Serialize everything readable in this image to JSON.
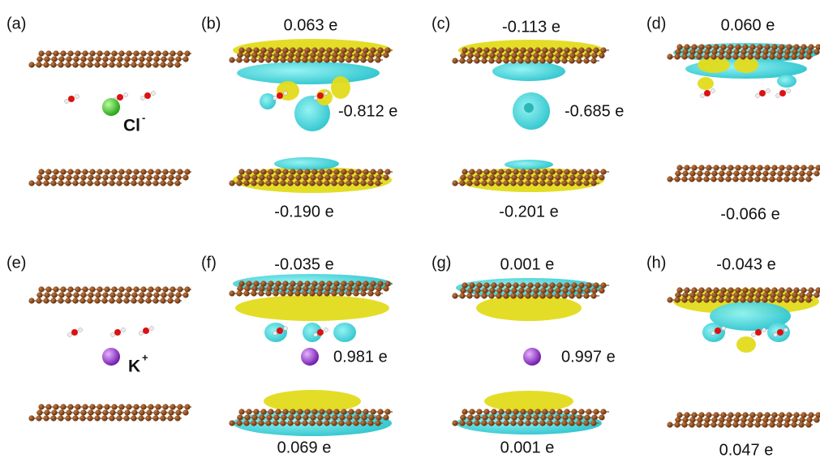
{
  "panels": [
    {
      "label": "(a)",
      "ion": {
        "symbol": "Cl",
        "charge": "-"
      }
    },
    {
      "label": "(b)",
      "top": "0.063 e",
      "middle": "-0.812 e",
      "bottom": "-0.190 e"
    },
    {
      "label": "(c)",
      "top": "-0.113 e",
      "middle": "-0.685 e",
      "bottom": "-0.201 e"
    },
    {
      "label": "(d)",
      "top": "0.060 e",
      "bottom": "-0.066 e"
    },
    {
      "label": "(e)",
      "ion": {
        "symbol": "K",
        "charge": "+"
      }
    },
    {
      "label": "(f)",
      "top": "-0.035 e",
      "middle": "0.981 e",
      "bottom": "0.069 e"
    },
    {
      "label": "(g)",
      "top": "0.001 e",
      "middle": "0.997 e",
      "bottom": "0.001 e"
    },
    {
      "label": "(h)",
      "top": "-0.043 e",
      "bottom": "0.047 e"
    }
  ]
}
